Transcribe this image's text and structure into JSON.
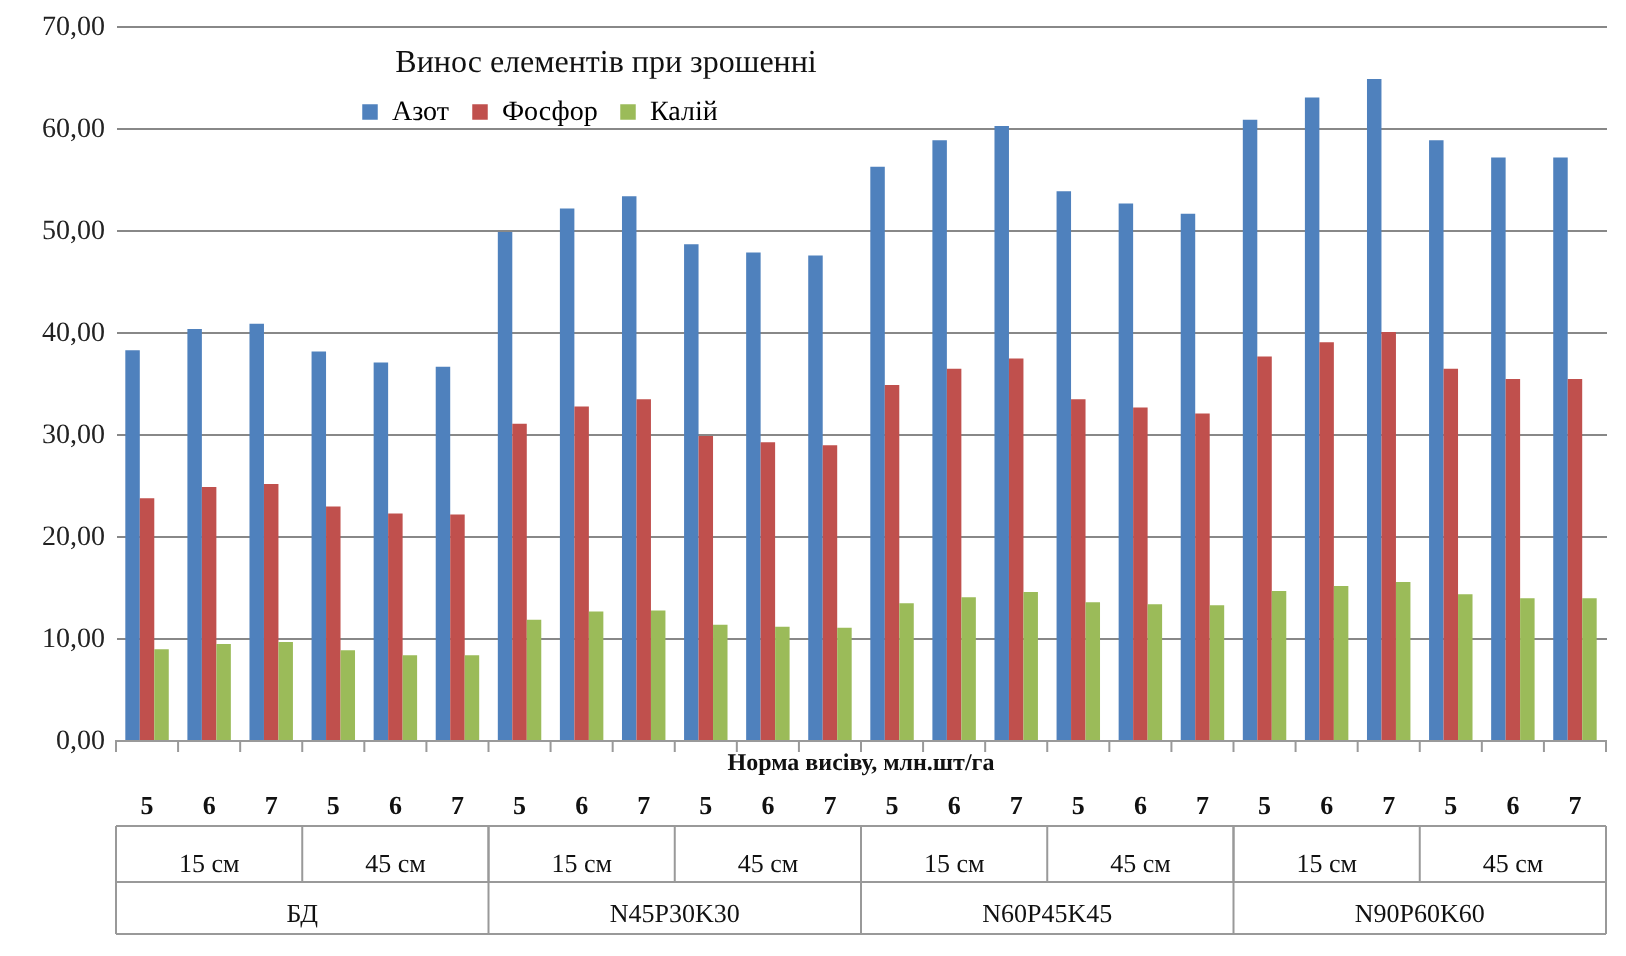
{
  "chart_data": {
    "type": "bar",
    "title": "Винос елементів при зрошенні",
    "xlabel": "Норма висіву, млн.шт/га",
    "categories": [
      "5",
      "6",
      "7",
      "5",
      "6",
      "7",
      "5",
      "6",
      "7",
      "5",
      "6",
      "7",
      "5",
      "6",
      "7",
      "5",
      "6",
      "7",
      "5",
      "6",
      "7",
      "5",
      "6",
      "7"
    ],
    "series": [
      {
        "name": "Азот",
        "color": "#4f81bd",
        "values": [
          38.2,
          40.3,
          40.8,
          38.1,
          37.0,
          36.6,
          49.8,
          52.1,
          53.3,
          48.6,
          47.8,
          47.5,
          56.2,
          58.8,
          60.2,
          53.8,
          52.6,
          51.6,
          60.8,
          63.0,
          64.8,
          58.8,
          57.1,
          57.1
        ]
      },
      {
        "name": "Фосфор",
        "color": "#c0504d",
        "values": [
          23.7,
          24.8,
          25.1,
          22.9,
          22.2,
          22.1,
          31.0,
          32.7,
          33.4,
          29.8,
          29.2,
          28.9,
          34.8,
          36.4,
          37.4,
          33.4,
          32.6,
          32.0,
          37.6,
          39.0,
          40.0,
          36.4,
          35.4,
          35.4
        ]
      },
      {
        "name": "Калій",
        "color": "#9bbb59",
        "values": [
          8.9,
          9.4,
          9.6,
          8.8,
          8.3,
          8.3,
          11.8,
          12.6,
          12.7,
          11.3,
          11.1,
          11.0,
          13.4,
          14.0,
          14.5,
          13.5,
          13.3,
          13.2,
          14.6,
          15.1,
          15.5,
          14.3,
          13.9,
          13.9
        ]
      }
    ],
    "annotations": [
      "15 см",
      "45 см",
      "15 см",
      "45 см",
      "15 см",
      "45 см",
      "15 см",
      "45 см",
      "БД",
      "N45P30K30",
      "N60P45K45",
      "N90P60K60"
    ],
    "ylim": [
      0,
      70
    ],
    "yticks": [
      {
        "value": 0,
        "label": "0,00"
      },
      {
        "value": 10,
        "label": "10,00"
      },
      {
        "value": 20,
        "label": "20,00"
      },
      {
        "value": 30,
        "label": "30,00"
      },
      {
        "value": 40,
        "label": "40,00"
      },
      {
        "value": 50,
        "label": "50,00"
      },
      {
        "value": 60,
        "label": "60,00"
      },
      {
        "value": 70,
        "label": "70,00"
      }
    ],
    "grid": "y",
    "legend": "top"
  }
}
